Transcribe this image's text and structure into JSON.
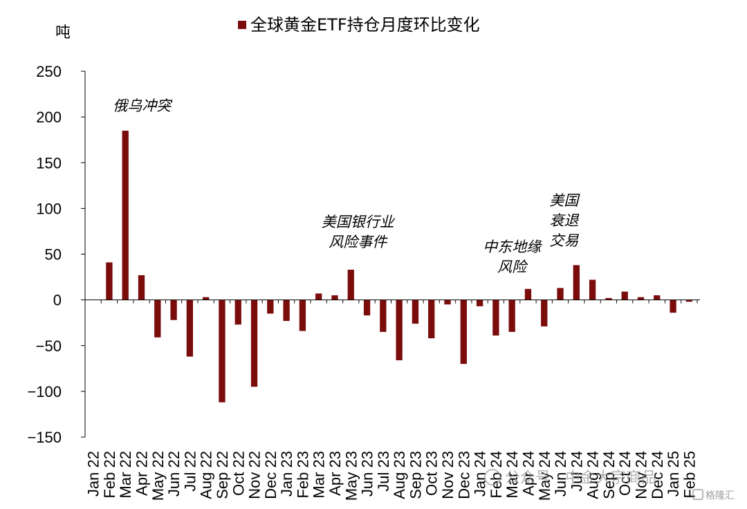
{
  "chart_data": {
    "type": "bar",
    "title": "全球黄金ETF持仓月度环比变化",
    "ylabel": "吨",
    "ylim": [
      -150,
      250
    ],
    "yticks": [
      250,
      200,
      150,
      100,
      50,
      0,
      -50,
      -100,
      -150
    ],
    "legend_position": "top-center",
    "bar_color": "#7b0c0c",
    "categories": [
      "Jan 22",
      "Feb 22",
      "Mar 22",
      "Apr 22",
      "May 22",
      "Jun 22",
      "Jul 22",
      "Aug 22",
      "Sep 22",
      "Oct 22",
      "Nov 22",
      "Dec 22",
      "Jan 23",
      "Feb 23",
      "Mar 23",
      "Apr 23",
      "May 23",
      "Jun 23",
      "Jul 23",
      "Aug 23",
      "Sep 23",
      "Oct 23",
      "Nov 23",
      "Dec 23",
      "Jan 24",
      "Feb 24",
      "Mar 24",
      "Apr 24",
      "May 24",
      "Jun 24",
      "Jul 24",
      "Aug 24",
      "Sep 24",
      "Oct 24",
      "Nov 24",
      "Dec 24",
      "Jan 25",
      "Feb 25"
    ],
    "series": [
      {
        "name": "全球黄金ETF持仓月度环比变化",
        "values": [
          0,
          41,
          185,
          27,
          -41,
          -22,
          -62,
          3,
          -112,
          -27,
          -95,
          -15,
          -23,
          -34,
          7,
          5,
          33,
          -17,
          -35,
          -66,
          -26,
          -42,
          -5,
          -70,
          -7,
          -39,
          -35,
          12,
          -29,
          13,
          38,
          22,
          2,
          9,
          3,
          5,
          -14,
          -2
        ]
      }
    ],
    "annotations": [
      {
        "lines": [
          "俄乌冲突"
        ],
        "category": "Mar 22"
      },
      {
        "lines": [
          "美国银行业",
          "风险事件"
        ],
        "category": "May 23"
      },
      {
        "lines": [
          "中东地缘",
          "风险"
        ],
        "category": "Mar 24"
      },
      {
        "lines": [
          "美国",
          "衰退",
          "交易"
        ],
        "category": "Jul 24"
      }
    ]
  },
  "watermark": {
    "main": "公众号 · 中金大宗商品",
    "corner": "格隆汇"
  }
}
